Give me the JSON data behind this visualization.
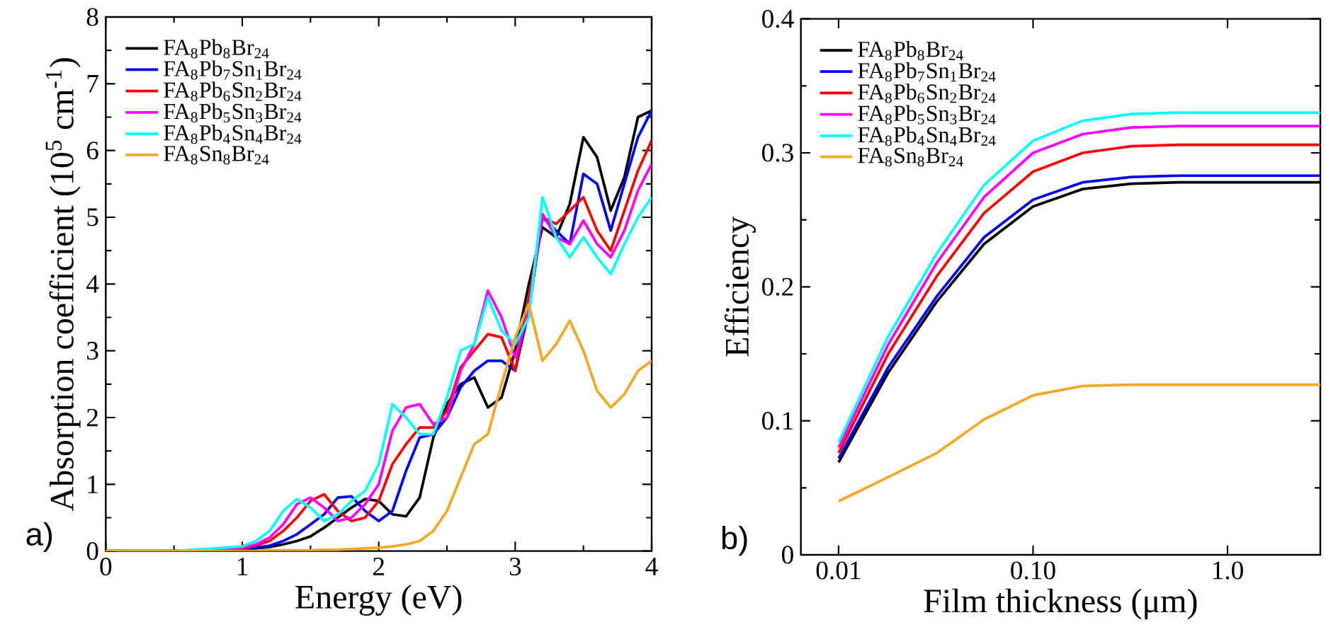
{
  "chart_data": [
    {
      "type": "line",
      "xlabel": "Energy (eV)",
      "ylabel": "Absorption coefficient (10$^{5}$ cm$^{-1}$)",
      "annotations": [
        "a)"
      ],
      "xlim": [
        0,
        4
      ],
      "ylim": [
        0,
        8
      ],
      "xticks": [
        0,
        1,
        2,
        3,
        4
      ],
      "yticks": [
        0,
        1,
        2,
        3,
        4,
        5,
        6,
        7,
        8
      ],
      "legend": "top left",
      "x": [
        0,
        0.5,
        1.0,
        1.1,
        1.2,
        1.3,
        1.4,
        1.5,
        1.6,
        1.7,
        1.8,
        1.9,
        2.0,
        2.1,
        2.2,
        2.3,
        2.4,
        2.5,
        2.6,
        2.7,
        2.8,
        2.9,
        3.0,
        3.1,
        3.2,
        3.3,
        3.4,
        3.5,
        3.6,
        3.7,
        3.8,
        3.9,
        4.0
      ],
      "series": [
        {
          "name": "FA$_{8}$Pb$_{8}$Br$_{24}$",
          "color": "#000000",
          "values": [
            0,
            0,
            0.02,
            0.04,
            0.06,
            0.1,
            0.15,
            0.22,
            0.35,
            0.5,
            0.65,
            0.78,
            0.75,
            0.55,
            0.52,
            0.8,
            1.7,
            2.2,
            2.5,
            2.6,
            2.15,
            2.3,
            3.0,
            4.0,
            4.85,
            4.7,
            5.2,
            6.2,
            5.9,
            5.1,
            5.6,
            6.5,
            6.6
          ]
        },
        {
          "name": "FA$_{8}$Pb$_{7}$Sn$_{1}$Br$_{24}$",
          "color": "#0000ff",
          "values": [
            0,
            0,
            0.03,
            0.05,
            0.08,
            0.15,
            0.25,
            0.4,
            0.55,
            0.8,
            0.82,
            0.6,
            0.45,
            0.6,
            1.2,
            1.7,
            1.75,
            2.0,
            2.45,
            2.7,
            2.85,
            2.85,
            2.7,
            3.6,
            5.0,
            4.8,
            4.6,
            5.65,
            5.5,
            4.8,
            5.5,
            6.2,
            6.6
          ]
        },
        {
          "name": "FA$_{8}$Pb$_{6}$Sn$_{2}$Br$_{24}$",
          "color": "#ff0000",
          "values": [
            0,
            0,
            0.04,
            0.08,
            0.15,
            0.3,
            0.5,
            0.75,
            0.85,
            0.6,
            0.45,
            0.5,
            0.75,
            1.3,
            1.6,
            1.85,
            1.85,
            2.1,
            2.75,
            3.0,
            3.25,
            3.2,
            2.7,
            3.8,
            5.0,
            4.9,
            5.1,
            5.3,
            4.8,
            4.5,
            5.1,
            5.7,
            6.15
          ]
        },
        {
          "name": "FA$_{8}$Pb$_{5}$Sn$_{3}$Br$_{24}$",
          "color": "#ff00ff",
          "values": [
            0,
            0,
            0.05,
            0.1,
            0.2,
            0.4,
            0.7,
            0.8,
            0.65,
            0.45,
            0.5,
            0.7,
            1.0,
            1.8,
            2.15,
            2.2,
            1.9,
            2.0,
            2.7,
            3.1,
            3.9,
            3.5,
            2.9,
            3.6,
            5.05,
            4.7,
            4.6,
            4.95,
            4.6,
            4.4,
            4.8,
            5.4,
            5.8
          ]
        },
        {
          "name": "FA$_{8}$Pb$_{4}$Sn$_{4}$Br$_{24}$",
          "color": "#00ffff",
          "values": [
            0,
            0,
            0.07,
            0.15,
            0.3,
            0.6,
            0.78,
            0.65,
            0.45,
            0.55,
            0.75,
            0.9,
            1.3,
            2.2,
            2.0,
            1.75,
            1.75,
            2.3,
            3.0,
            3.1,
            3.8,
            3.3,
            3.1,
            3.5,
            5.3,
            4.7,
            4.4,
            4.7,
            4.4,
            4.15,
            4.6,
            5.0,
            5.3
          ]
        },
        {
          "name": "FA$_{8}$Sn$_{8}$Br$_{24}$",
          "color": "#f5a623",
          "values": [
            0,
            0,
            0,
            0,
            0.01,
            0.01,
            0.01,
            0.01,
            0.02,
            0.02,
            0.03,
            0.04,
            0.05,
            0.07,
            0.1,
            0.15,
            0.3,
            0.6,
            1.1,
            1.6,
            1.75,
            2.5,
            3.2,
            3.7,
            2.85,
            3.1,
            3.45,
            3.0,
            2.4,
            2.15,
            2.35,
            2.7,
            2.85
          ]
        }
      ]
    },
    {
      "type": "line",
      "xlabel": "Film thickness (μm)",
      "ylabel": "Efficiency",
      "annotations": [
        "b)"
      ],
      "log": "x",
      "xlim": [
        0.0064,
        3
      ],
      "ylim": [
        0,
        0.4
      ],
      "xticks": [
        {
          "value": 0.01,
          "label": "0.01"
        },
        {
          "value": 0.1,
          "label": "0.10"
        },
        {
          "value": 1,
          "label": "1.0"
        }
      ],
      "yticks": [
        0,
        0.1,
        0.2,
        0.3,
        0.4
      ],
      "legend": "top left",
      "x": [
        0.01,
        0.018,
        0.032,
        0.056,
        0.1,
        0.18,
        0.32,
        0.56,
        1,
        1.8,
        3
      ],
      "series": [
        {
          "name": "FA$_{8}$Pb$_{8}$Br$_{24}$",
          "color": "#000000",
          "values": [
            0.069,
            0.136,
            0.189,
            0.232,
            0.26,
            0.273,
            0.277,
            0.278,
            0.278,
            0.278,
            0.278
          ]
        },
        {
          "name": "FA$_{8}$Pb$_{7}$Sn$_{1}$Br$_{24}$",
          "color": "#0000ff",
          "values": [
            0.072,
            0.14,
            0.193,
            0.237,
            0.265,
            0.278,
            0.282,
            0.283,
            0.283,
            0.283,
            0.283
          ]
        },
        {
          "name": "FA$_{8}$Pb$_{6}$Sn$_{2}$Br$_{24}$",
          "color": "#ff0000",
          "values": [
            0.076,
            0.15,
            0.208,
            0.255,
            0.286,
            0.3,
            0.305,
            0.306,
            0.306,
            0.306,
            0.306
          ]
        },
        {
          "name": "FA$_{8}$Pb$_{5}$Sn$_{3}$Br$_{24}$",
          "color": "#ff00ff",
          "values": [
            0.08,
            0.157,
            0.218,
            0.267,
            0.3,
            0.314,
            0.319,
            0.32,
            0.32,
            0.32,
            0.32
          ]
        },
        {
          "name": "FA$_{8}$Pb$_{4}$Sn$_{4}$Br$_{24}$",
          "color": "#00ffff",
          "values": [
            0.084,
            0.163,
            0.225,
            0.276,
            0.309,
            0.324,
            0.329,
            0.33,
            0.33,
            0.33,
            0.33
          ]
        },
        {
          "name": "FA$_{8}$Sn$_{8}$Br$_{24}$",
          "color": "#f5a623",
          "values": [
            0.04,
            0.058,
            0.076,
            0.101,
            0.119,
            0.126,
            0.127,
            0.127,
            0.127,
            0.127,
            0.127
          ]
        }
      ]
    }
  ]
}
